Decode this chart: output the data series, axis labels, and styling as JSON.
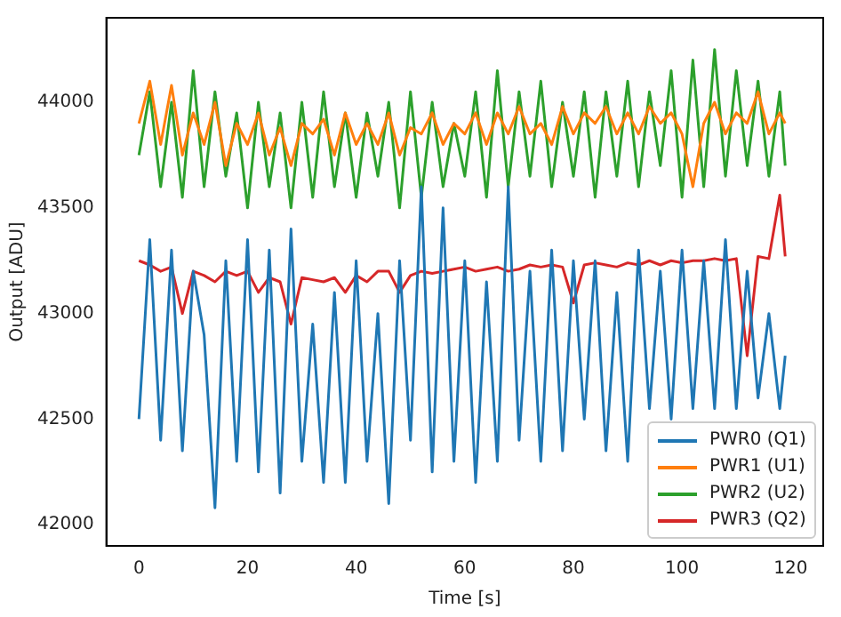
{
  "chart_data": {
    "type": "line",
    "xlabel": "Time [s]",
    "ylabel": "Output [ADU]",
    "x": [
      0,
      2,
      4,
      6,
      8,
      10,
      12,
      14,
      16,
      18,
      20,
      22,
      24,
      26,
      28,
      30,
      32,
      34,
      36,
      38,
      40,
      42,
      44,
      46,
      48,
      50,
      52,
      54,
      56,
      58,
      60,
      62,
      64,
      66,
      68,
      70,
      72,
      74,
      76,
      78,
      80,
      82,
      84,
      86,
      88,
      90,
      92,
      94,
      96,
      98,
      100,
      102,
      104,
      106,
      108,
      110,
      112,
      114,
      116,
      118,
      119
    ],
    "series": [
      {
        "name": "PWR0 (Q1)",
        "color": "#1f77b4",
        "values": [
          42500,
          43350,
          42400,
          43300,
          42350,
          43200,
          42900,
          42080,
          43250,
          42300,
          43350,
          42250,
          43300,
          42150,
          43400,
          42300,
          42950,
          42200,
          43100,
          42200,
          43250,
          42300,
          43000,
          42100,
          43250,
          42400,
          43600,
          42250,
          43500,
          42300,
          43250,
          42200,
          43150,
          42300,
          43600,
          42400,
          43200,
          42300,
          43300,
          42350,
          43250,
          42500,
          43250,
          42350,
          43100,
          42300,
          43300,
          42550,
          43200,
          42500,
          43300,
          42550,
          43250,
          42550,
          43350,
          42550,
          43200,
          42600,
          43000,
          42550,
          42800
        ]
      },
      {
        "name": "PWR1 (U1)",
        "color": "#ff7f0e",
        "values": [
          43900,
          44100,
          43800,
          44080,
          43750,
          43950,
          43800,
          44000,
          43700,
          43900,
          43800,
          43950,
          43750,
          43880,
          43700,
          43900,
          43850,
          43920,
          43750,
          43950,
          43800,
          43900,
          43800,
          43950,
          43750,
          43880,
          43850,
          43950,
          43800,
          43900,
          43850,
          43950,
          43800,
          43950,
          43850,
          43980,
          43850,
          43900,
          43800,
          43980,
          43850,
          43950,
          43900,
          43980,
          43850,
          43950,
          43850,
          43980,
          43900,
          43950,
          43850,
          43600,
          43900,
          44000,
          43850,
          43950,
          43900,
          44050,
          43850,
          43950,
          43900
        ]
      },
      {
        "name": "PWR2 (U2)",
        "color": "#2ca02c",
        "values": [
          43750,
          44050,
          43600,
          44000,
          43550,
          44150,
          43600,
          44050,
          43650,
          43950,
          43500,
          44000,
          43600,
          43950,
          43500,
          44000,
          43550,
          44050,
          43600,
          43950,
          43550,
          43950,
          43650,
          44000,
          43500,
          44050,
          43550,
          44000,
          43600,
          43900,
          43650,
          44050,
          43550,
          44150,
          43600,
          44050,
          43650,
          44100,
          43600,
          44000,
          43650,
          44050,
          43550,
          44050,
          43650,
          44100,
          43600,
          44050,
          43700,
          44150,
          43550,
          44200,
          43600,
          44250,
          43650,
          44150,
          43700,
          44100,
          43650,
          44050,
          43700
        ]
      },
      {
        "name": "PWR3 (Q2)",
        "color": "#d62728",
        "values": [
          43250,
          43230,
          43200,
          43220,
          43000,
          43200,
          43180,
          43150,
          43200,
          43180,
          43200,
          43100,
          43170,
          43150,
          42950,
          43170,
          43160,
          43150,
          43170,
          43100,
          43180,
          43150,
          43200,
          43200,
          43100,
          43180,
          43200,
          43190,
          43200,
          43210,
          43220,
          43200,
          43210,
          43220,
          43200,
          43210,
          43230,
          43220,
          43230,
          43220,
          43050,
          43230,
          43240,
          43230,
          43220,
          43240,
          43230,
          43250,
          43230,
          43250,
          43240,
          43250,
          43250,
          43260,
          43250,
          43260,
          42800,
          43270,
          43260,
          43560,
          43270
        ]
      }
    ],
    "xlim": [
      -6,
      126
    ],
    "ylim": [
      41900,
      44400
    ],
    "xticks": [
      0,
      20,
      40,
      60,
      80,
      100,
      120
    ],
    "yticks": [
      42000,
      42500,
      43000,
      43500,
      44000
    ],
    "grid": false,
    "legend": "bottom right",
    "marker": "none",
    "line_style": "solid"
  }
}
